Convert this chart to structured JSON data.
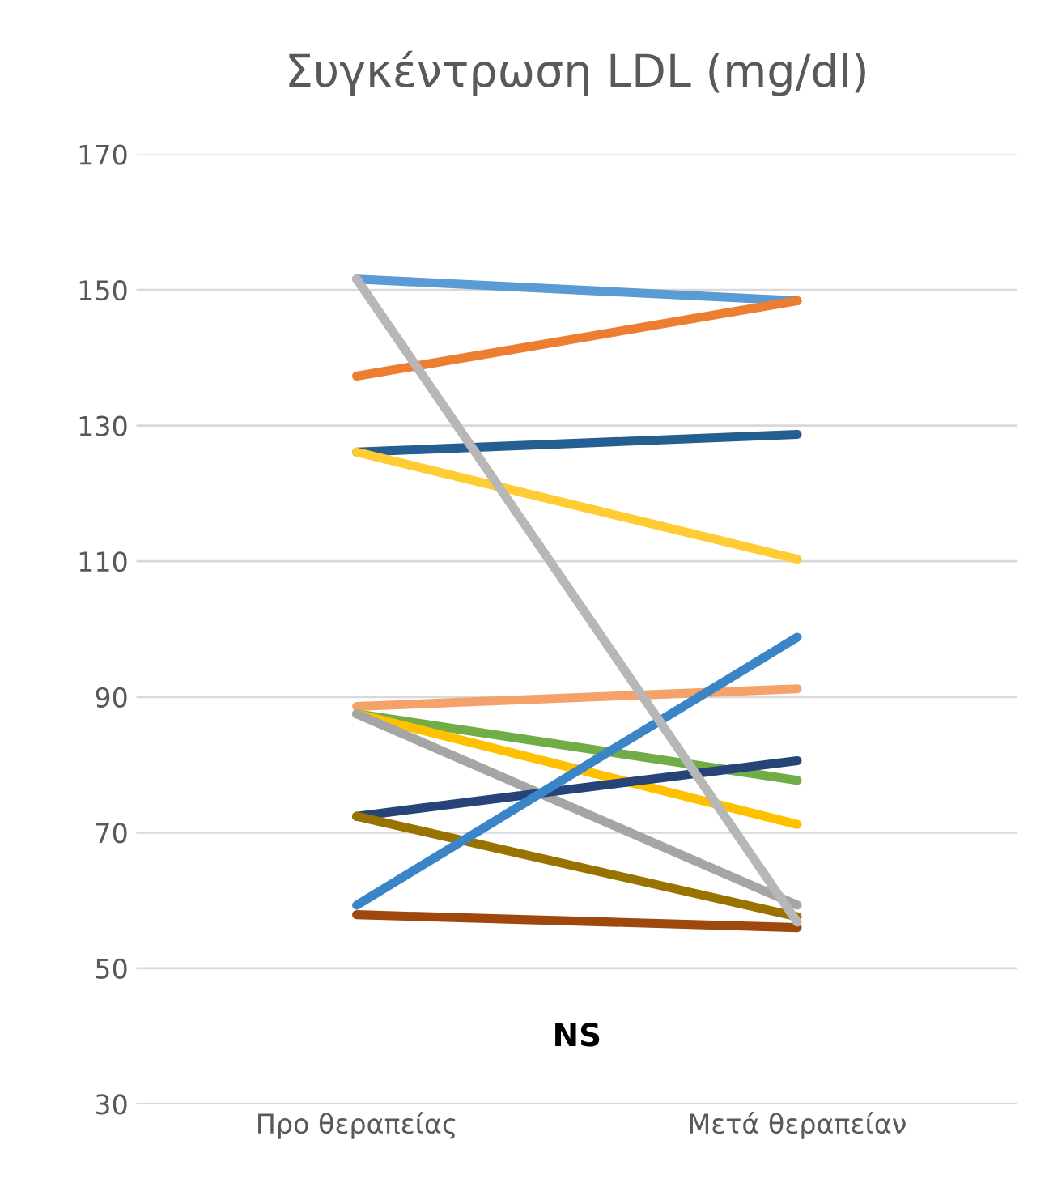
{
  "chart_data": {
    "type": "line",
    "title": "Συγκέντρωση LDL (mg/dl)",
    "categories": [
      "Προ θεραπείας",
      "Μετά θεραπείαν"
    ],
    "series": [
      {
        "color": "#5b9bd5",
        "values": [
          151.6,
          148.4
        ]
      },
      {
        "color": "#ed7d31",
        "values": [
          137.3,
          148.4
        ]
      },
      {
        "color": "#255e91",
        "values": [
          126.1,
          128.7
        ]
      },
      {
        "color": "#ffcd33",
        "values": [
          126.1,
          110.3
        ]
      },
      {
        "color": "#f4a26a",
        "values": [
          88.6,
          91.2
        ]
      },
      {
        "color": "#70ad47",
        "values": [
          87.5,
          77.7
        ]
      },
      {
        "color": "#ffc000",
        "values": [
          87.5,
          71.2
        ]
      },
      {
        "color": "#a5a5a5",
        "values": [
          87.5,
          59.3
        ]
      },
      {
        "color": "#264478",
        "values": [
          72.4,
          80.6
        ]
      },
      {
        "color": "#997300",
        "values": [
          72.4,
          57.6
        ]
      },
      {
        "color": "#9e480e",
        "values": [
          57.9,
          56.0
        ]
      },
      {
        "color": "#3a85c8",
        "values": [
          59.3,
          98.8
        ]
      },
      {
        "color": "#b7b7b7",
        "values": [
          151.6,
          56.8
        ]
      }
    ],
    "ylim": [
      30,
      170
    ],
    "yticks": [
      30,
      50,
      70,
      90,
      110,
      130,
      150,
      170
    ],
    "grid": "y",
    "annotations": [
      "NS"
    ]
  }
}
